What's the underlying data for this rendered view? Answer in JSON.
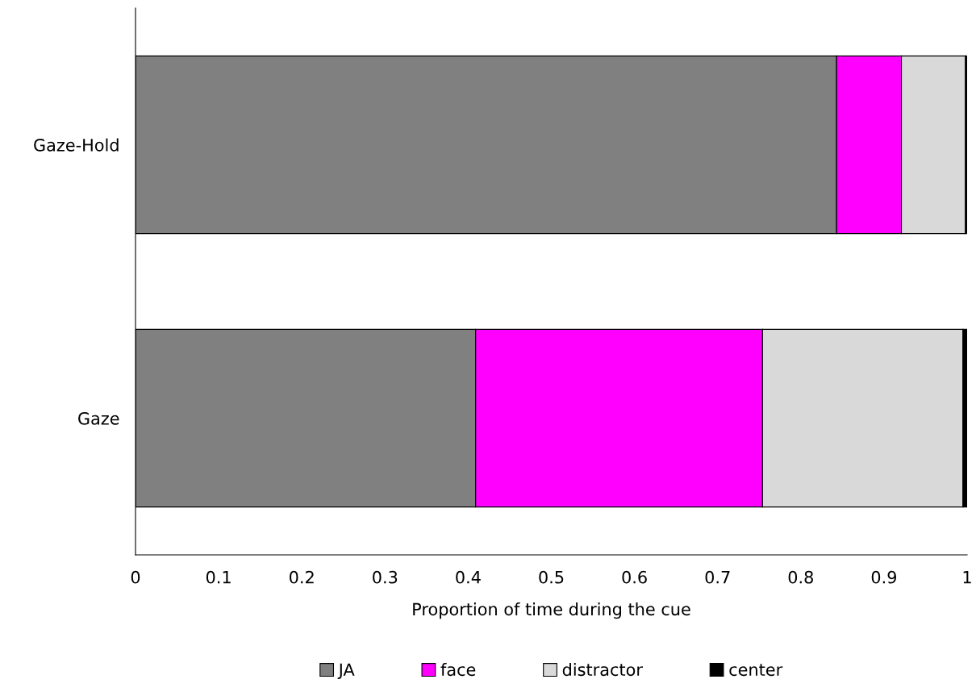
{
  "chart_data": {
    "type": "bar",
    "orientation": "horizontal",
    "stacked": true,
    "xlabel": "Proportion of time during the cue",
    "categories": [
      "Gaze-Hold",
      "Gaze"
    ],
    "series": [
      {
        "name": "JA",
        "color": "#808080",
        "values": [
          0.843,
          0.409
        ]
      },
      {
        "name": "face",
        "color": "#ff00ff",
        "values": [
          0.078,
          0.345
        ]
      },
      {
        "name": "distractor",
        "color": "#d9d9d9",
        "values": [
          0.077,
          0.241
        ]
      },
      {
        "name": "center",
        "color": "#000000",
        "values": [
          0.002,
          0.005
        ]
      }
    ],
    "xlim": [
      0,
      1
    ],
    "xticks": [
      0,
      0.1,
      0.2,
      0.3,
      0.4,
      0.5,
      0.6,
      0.7,
      0.8,
      0.9,
      1
    ],
    "grid": false,
    "legend": "bottom"
  }
}
